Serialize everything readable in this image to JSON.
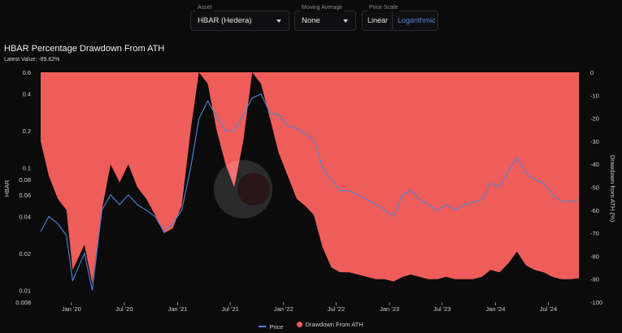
{
  "controls": {
    "asset": {
      "caption": "Asset",
      "value": "HBAR (Hedera)"
    },
    "moving_average": {
      "caption": "Moving Average",
      "value": "None"
    },
    "price_scale": {
      "caption": "Price Scale",
      "options": [
        "Linear",
        "Logarithmic"
      ],
      "selected": "Logarithmic"
    }
  },
  "header": {
    "title": "HBAR Percentage Drawdown From ATH",
    "latest": "Latest Value: -89.62%"
  },
  "colors": {
    "price": "#4f86d9",
    "drawdown": "#ef5d5a",
    "background": "#0b0b0c"
  },
  "chart_data": {
    "type": "area",
    "x_tick_labels": [
      "Jan '20",
      "Jul '20",
      "Jan '21",
      "Jul '21",
      "Jan '22",
      "Jul '22",
      "Jan '23",
      "Jul '23",
      "Jan '24",
      "Jul '24"
    ],
    "left_axis": {
      "label": "HBAR",
      "scale": "log",
      "ticks": [
        "0.6",
        "0.4",
        "0.2",
        "0.1",
        "0.08",
        "0.06",
        "0.04",
        "0.02",
        "0.01",
        "0.008"
      ],
      "range": [
        0.008,
        0.6
      ]
    },
    "right_axis": {
      "label": "Drawdown from ATH (%)",
      "ticks": [
        "0",
        "-10",
        "-20",
        "-30",
        "-40",
        "-50",
        "-60",
        "-70",
        "-80",
        "-90",
        "-100"
      ],
      "range": [
        -100,
        0
      ]
    },
    "legend": [
      "Price",
      "Drawdown From ATH"
    ],
    "legend_position": "bottom",
    "grid": false,
    "series": [
      {
        "name": "Price",
        "axis": "left",
        "x": [
          "2019-09-17",
          "2019-10-15",
          "2019-11-15",
          "2019-12-15",
          "2020-01-05",
          "2020-02-15",
          "2020-03-13",
          "2020-04-15",
          "2020-05-15",
          "2020-06-15",
          "2020-07-15",
          "2020-08-15",
          "2020-09-15",
          "2020-10-15",
          "2020-11-15",
          "2020-12-15",
          "2021-01-15",
          "2021-02-15",
          "2021-03-15",
          "2021-04-15",
          "2021-05-15",
          "2021-06-15",
          "2021-07-15",
          "2021-08-15",
          "2021-09-15",
          "2021-10-15",
          "2021-11-15",
          "2021-12-15",
          "2022-01-15",
          "2022-02-15",
          "2022-03-15",
          "2022-04-15",
          "2022-05-15",
          "2022-06-15",
          "2022-07-15",
          "2022-08-15",
          "2022-09-15",
          "2022-10-15",
          "2022-11-15",
          "2022-12-15",
          "2023-01-15",
          "2023-02-15",
          "2023-03-15",
          "2023-04-15",
          "2023-05-15",
          "2023-06-15",
          "2023-07-15",
          "2023-08-15",
          "2023-09-15",
          "2023-10-15",
          "2023-11-15",
          "2023-12-15",
          "2024-01-15",
          "2024-02-15",
          "2024-03-15",
          "2024-04-15",
          "2024-05-15",
          "2024-06-15",
          "2024-07-15",
          "2024-08-15",
          "2024-09-15",
          "2024-10-15"
        ],
        "values": [
          0.03,
          0.04,
          0.035,
          0.028,
          0.012,
          0.02,
          0.01,
          0.045,
          0.06,
          0.05,
          0.06,
          0.05,
          0.045,
          0.04,
          0.03,
          0.035,
          0.045,
          0.1,
          0.25,
          0.35,
          0.26,
          0.2,
          0.2,
          0.27,
          0.37,
          0.4,
          0.28,
          0.27,
          0.22,
          0.21,
          0.19,
          0.17,
          0.1,
          0.08,
          0.065,
          0.065,
          0.06,
          0.055,
          0.05,
          0.045,
          0.04,
          0.06,
          0.065,
          0.055,
          0.05,
          0.045,
          0.05,
          0.045,
          0.05,
          0.052,
          0.055,
          0.075,
          0.07,
          0.095,
          0.12,
          0.09,
          0.08,
          0.075,
          0.06,
          0.053,
          0.053,
          0.055
        ]
      },
      {
        "name": "Drawdown From ATH",
        "axis": "right",
        "x": [
          "2019-09-17",
          "2019-10-15",
          "2019-11-15",
          "2019-12-15",
          "2020-01-05",
          "2020-02-15",
          "2020-03-13",
          "2020-04-15",
          "2020-05-15",
          "2020-06-15",
          "2020-07-15",
          "2020-08-15",
          "2020-09-15",
          "2020-10-15",
          "2020-11-15",
          "2020-12-15",
          "2021-01-15",
          "2021-02-15",
          "2021-03-15",
          "2021-04-15",
          "2021-05-15",
          "2021-06-15",
          "2021-07-15",
          "2021-08-15",
          "2021-09-15",
          "2021-10-15",
          "2021-11-15",
          "2021-12-15",
          "2022-01-15",
          "2022-02-15",
          "2022-03-15",
          "2022-04-15",
          "2022-05-15",
          "2022-06-15",
          "2022-07-15",
          "2022-08-15",
          "2022-09-15",
          "2022-10-15",
          "2022-11-15",
          "2022-12-15",
          "2023-01-15",
          "2023-02-15",
          "2023-03-15",
          "2023-04-15",
          "2023-05-15",
          "2023-06-15",
          "2023-07-15",
          "2023-08-15",
          "2023-09-15",
          "2023-10-15",
          "2023-11-15",
          "2023-12-15",
          "2024-01-15",
          "2024-02-15",
          "2024-03-15",
          "2024-04-15",
          "2024-05-15",
          "2024-06-15",
          "2024-07-15",
          "2024-08-15",
          "2024-09-15",
          "2024-10-15"
        ],
        "values": [
          -30,
          -45,
          -55,
          -60,
          -86,
          -75,
          -92,
          -60,
          -40,
          -48,
          -40,
          -50,
          -55,
          -62,
          -70,
          -68,
          -58,
          -25,
          0,
          -5,
          -25,
          -40,
          -50,
          -30,
          0,
          -5,
          -20,
          -35,
          -45,
          -55,
          -58,
          -62,
          -76,
          -85,
          -87,
          -87,
          -88,
          -89,
          -90,
          -90,
          -91,
          -89,
          -88,
          -89,
          -90,
          -90,
          -89,
          -90,
          -90,
          -90,
          -89,
          -86,
          -87,
          -83,
          -78,
          -84,
          -86,
          -87,
          -89,
          -90,
          -90,
          -89.62
        ]
      }
    ]
  }
}
